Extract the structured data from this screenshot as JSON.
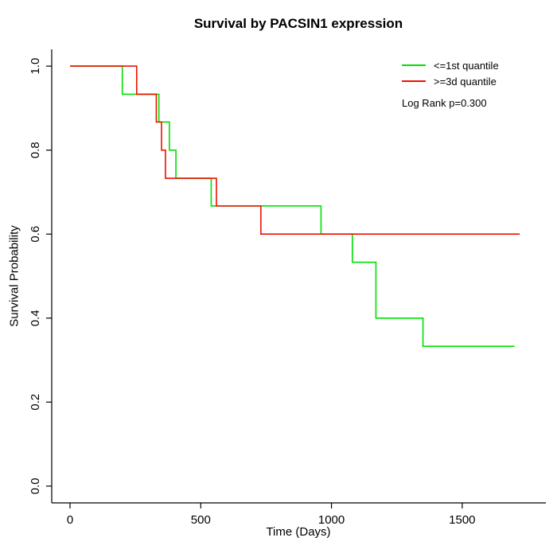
{
  "chart_data": {
    "type": "line",
    "subtype": "kaplan-meier-step",
    "title": "Survival by PACSIN1 expression",
    "xlabel": "Time (Days)",
    "ylabel": "Survival Probability",
    "xlim": [
      0,
      1750
    ],
    "ylim": [
      0,
      1
    ],
    "x_ticks": [
      0,
      500,
      1000,
      1500
    ],
    "x_tick_labels": [
      "0",
      "500",
      "1000",
      "1500"
    ],
    "y_ticks": [
      0,
      0.2,
      0.4,
      0.6,
      0.8,
      1.0
    ],
    "y_tick_labels": [
      "0.0",
      "0.2",
      "0.4",
      "0.6",
      "0.8",
      "1.0"
    ],
    "grid": false,
    "legend_position": "top-right",
    "annotation": "Log Rank p=0.300",
    "series": [
      {
        "name": "<=1st quantile",
        "key": "low-expression",
        "color": "#00e000",
        "points": [
          [
            0,
            1.0
          ],
          [
            200,
            0.933
          ],
          [
            340,
            0.867
          ],
          [
            380,
            0.8
          ],
          [
            405,
            0.733
          ],
          [
            540,
            0.667
          ],
          [
            960,
            0.6
          ],
          [
            1080,
            0.533
          ],
          [
            1170,
            0.4
          ],
          [
            1350,
            0.333
          ],
          [
            1700,
            0.333
          ]
        ]
      },
      {
        "name": ">=3d quantile",
        "key": "high-expression",
        "color": "#ee1100",
        "points": [
          [
            0,
            1.0
          ],
          [
            255,
            0.933
          ],
          [
            330,
            0.867
          ],
          [
            350,
            0.8
          ],
          [
            365,
            0.733
          ],
          [
            560,
            0.667
          ],
          [
            730,
            0.6
          ],
          [
            1720,
            0.6
          ]
        ]
      }
    ]
  },
  "colors": {
    "axis": "#000000",
    "background": "#ffffff",
    "text": "#000000"
  }
}
